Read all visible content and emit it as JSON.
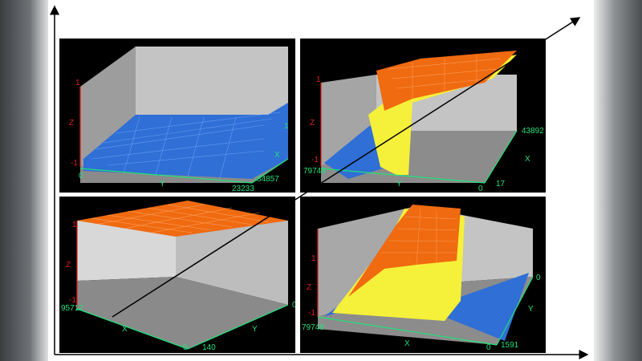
{
  "colors": {
    "axis_green": "#22e07a",
    "axis_red": "#e02020",
    "wall": "#c4c4c4",
    "surface_blue": "#2f6fd6",
    "surface_orange": "#f06a10",
    "surface_yellow": "#f5f03a",
    "panel_bg": "#000000"
  },
  "panels": [
    {
      "z_label": "Z",
      "y_label": "Y",
      "x_label": "X",
      "z_ticks": [
        "1",
        "-1"
      ],
      "y_ticks": [
        "0",
        "23233"
      ],
      "x_ticks": [
        "1",
        "84857"
      ]
    },
    {
      "z_label": "Z",
      "y_label": "Y",
      "x_label": "X",
      "z_ticks": [
        "1",
        "-1"
      ],
      "y_ticks": [
        "79748",
        "0"
      ],
      "x_ticks": [
        "43892",
        "17"
      ]
    },
    {
      "z_label": "Z",
      "y_label": "Y",
      "x_label": "X",
      "z_ticks": [
        "1",
        "-1"
      ],
      "y_ticks": [
        "0",
        "140"
      ],
      "x_ticks": [
        "95712",
        "0"
      ]
    },
    {
      "z_label": "Z",
      "y_label": "Y",
      "x_label": "X",
      "z_ticks": [
        "1",
        "-1"
      ],
      "y_ticks": [
        "0",
        "1591"
      ],
      "x_ticks": [
        "79748",
        "0"
      ]
    }
  ]
}
